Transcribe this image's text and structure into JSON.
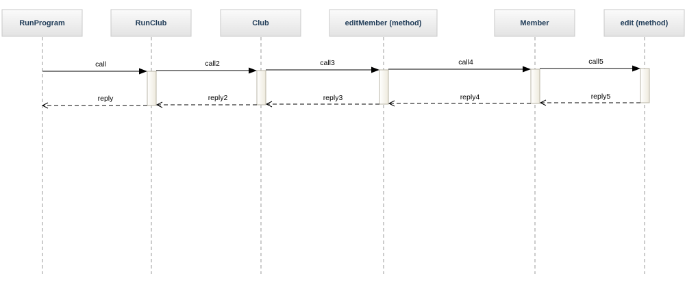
{
  "diagram": {
    "type": "sequence",
    "participants": [
      {
        "id": "runprogram",
        "label": "RunProgram"
      },
      {
        "id": "runclub",
        "label": "RunClub"
      },
      {
        "id": "club",
        "label": "Club"
      },
      {
        "id": "editmember",
        "label": "editMember (method)"
      },
      {
        "id": "member",
        "label": "Member"
      },
      {
        "id": "edit",
        "label": "edit (method)"
      }
    ],
    "messages": [
      {
        "from": "runprogram",
        "to": "runclub",
        "label": "call",
        "kind": "sync"
      },
      {
        "from": "runclub",
        "to": "club",
        "label": "call2",
        "kind": "sync"
      },
      {
        "from": "club",
        "to": "editmember",
        "label": "call3",
        "kind": "sync"
      },
      {
        "from": "editmember",
        "to": "member",
        "label": "call4",
        "kind": "sync"
      },
      {
        "from": "member",
        "to": "edit",
        "label": "call5",
        "kind": "sync"
      },
      {
        "from": "edit",
        "to": "member",
        "label": "reply5",
        "kind": "reply"
      },
      {
        "from": "member",
        "to": "editmember",
        "label": "reply4",
        "kind": "reply"
      },
      {
        "from": "editmember",
        "to": "club",
        "label": "reply3",
        "kind": "reply"
      },
      {
        "from": "club",
        "to": "runclub",
        "label": "reply2",
        "kind": "reply"
      },
      {
        "from": "runclub",
        "to": "runprogram",
        "label": "reply",
        "kind": "reply"
      }
    ],
    "colors": {
      "header_top": "#fbfbfb",
      "header_bottom": "#e3e3e3",
      "header_border": "#c8c8c8",
      "label": "#1f3b57",
      "lifeline": "#9a9a9a",
      "activation_fill": "#f7f5ee",
      "activation_border": "#b8b4a6",
      "arrow": "#000000"
    }
  }
}
